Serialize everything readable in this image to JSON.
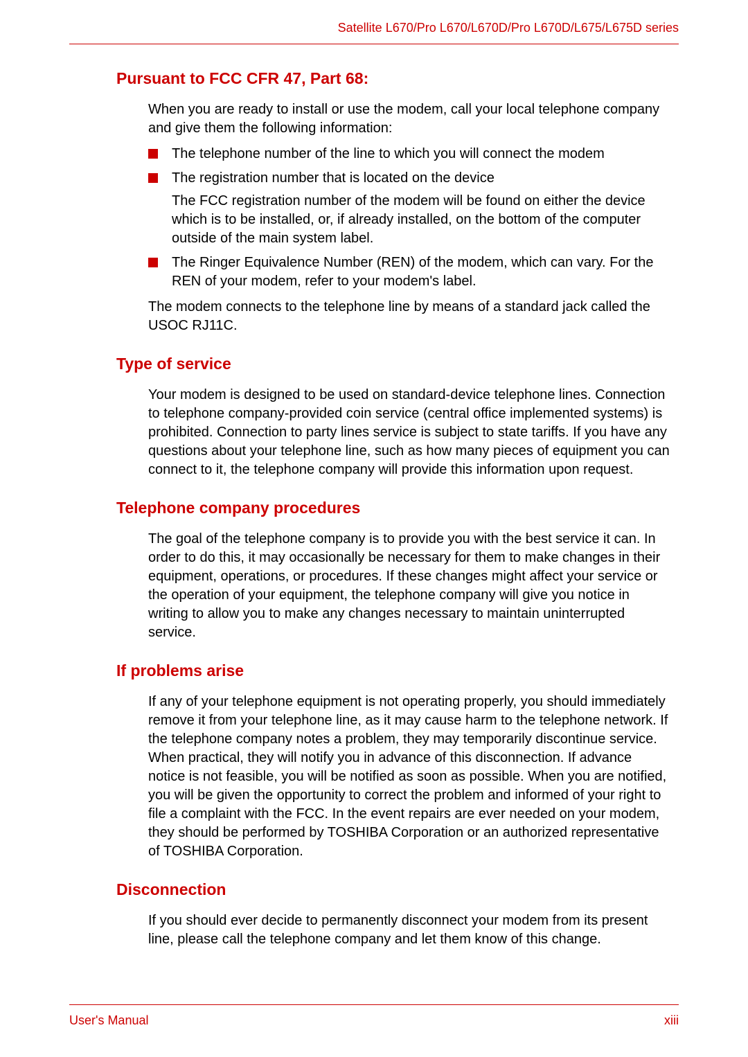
{
  "header": {
    "product_line": "Satellite L670/Pro L670/L670D/Pro L670D/L675/L675D series"
  },
  "colors": {
    "accent": "#cc0000",
    "text": "#000000",
    "background": "#ffffff"
  },
  "sections": {
    "s1": {
      "heading": "Pursuant to FCC CFR 47, Part 68:",
      "intro": "When you are ready to install or use the modem, call your local telephone company and give them the following information:",
      "bullets": {
        "b1": "The telephone number of the line to which you will connect the modem",
        "b2": "The registration number that is located on the device",
        "b2_sub": "The FCC registration number of the modem will be found on either the device which is to be installed, or, if already installed, on the bottom of the computer outside of the main system label.",
        "b3": "The Ringer Equivalence Number (REN) of the modem, which can vary. For the REN of your modem, refer to your modem's label."
      },
      "outro": "The modem connects to the telephone line by means of a standard jack called the USOC RJ11C."
    },
    "s2": {
      "heading": "Type of service",
      "body": "Your modem is designed to be used on standard-device telephone lines. Connection to telephone company-provided coin service (central office implemented systems) is prohibited. Connection to party lines service is subject to state tariffs. If you have any questions about your telephone line, such as how many pieces of equipment you can connect to it, the telephone company will provide this information upon request."
    },
    "s3": {
      "heading": "Telephone company procedures",
      "body": "The goal of the telephone company is to provide you with the best service it can. In order to do this, it may occasionally be necessary for them to make changes in their equipment, operations, or procedures. If these changes might affect your service or the operation of your equipment, the telephone company will give you notice in writing to allow you to make any changes necessary to maintain uninterrupted service."
    },
    "s4": {
      "heading": "If problems arise",
      "body": "If any of your telephone equipment is not operating properly, you should immediately remove it from your telephone line, as it may cause harm to the telephone network. If the telephone company notes a problem, they may temporarily discontinue service. When practical, they will notify you in advance of this disconnection. If advance notice is not feasible, you will be notified as soon as possible. When you are notified, you will be given the opportunity to correct the problem and informed of your right to file a complaint with the FCC. In the event repairs are ever needed on your modem, they should be performed by TOSHIBA Corporation or an authorized representative of TOSHIBA Corporation."
    },
    "s5": {
      "heading": "Disconnection",
      "body": "If you should ever decide to permanently disconnect your modem from its present line, please call the telephone company and let them know of this change."
    }
  },
  "footer": {
    "left": "User's Manual",
    "right": "xiii"
  }
}
